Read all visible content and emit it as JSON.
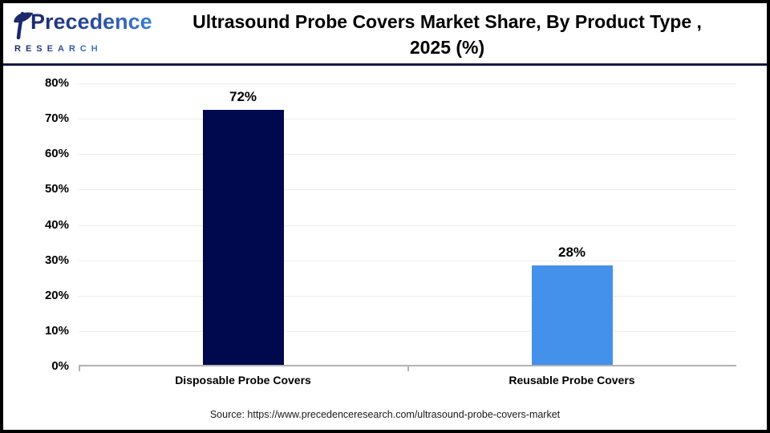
{
  "logo": {
    "name": "Precedence",
    "subtitle": "RESEARCH"
  },
  "title": {
    "line1": "Ultrasound Probe Covers Market Share, By Product Type ,",
    "line2": "2025 (%)"
  },
  "chart_data": {
    "type": "bar",
    "title": "Ultrasound Probe Covers Market Share, By Product Type , 2025 (%)",
    "categories": [
      "Disposable Probe Covers",
      "Reusable Probe Covers"
    ],
    "values": [
      72,
      28
    ],
    "value_labels": [
      "72%",
      "28%"
    ],
    "bar_colors": [
      "#01094e",
      "#4491ec"
    ],
    "xlabel": "",
    "ylabel": "",
    "ylim": [
      0,
      80
    ],
    "ytick_step": 10,
    "ytick_suffix": "%",
    "grid": true,
    "legend": false
  },
  "source": {
    "text": "Source: https://www.precedenceresearch.com/ultrasound-probe-covers-market"
  },
  "colors": {
    "bar_disposable": "#01094e",
    "bar_reusable": "#4491ec",
    "header_divider": "#141a47",
    "gridline": "#ededed",
    "axis_line": "#b3b3b3",
    "logo_gradient_start": "#1b2a6b",
    "logo_gradient_end": "#3d7fd9"
  }
}
